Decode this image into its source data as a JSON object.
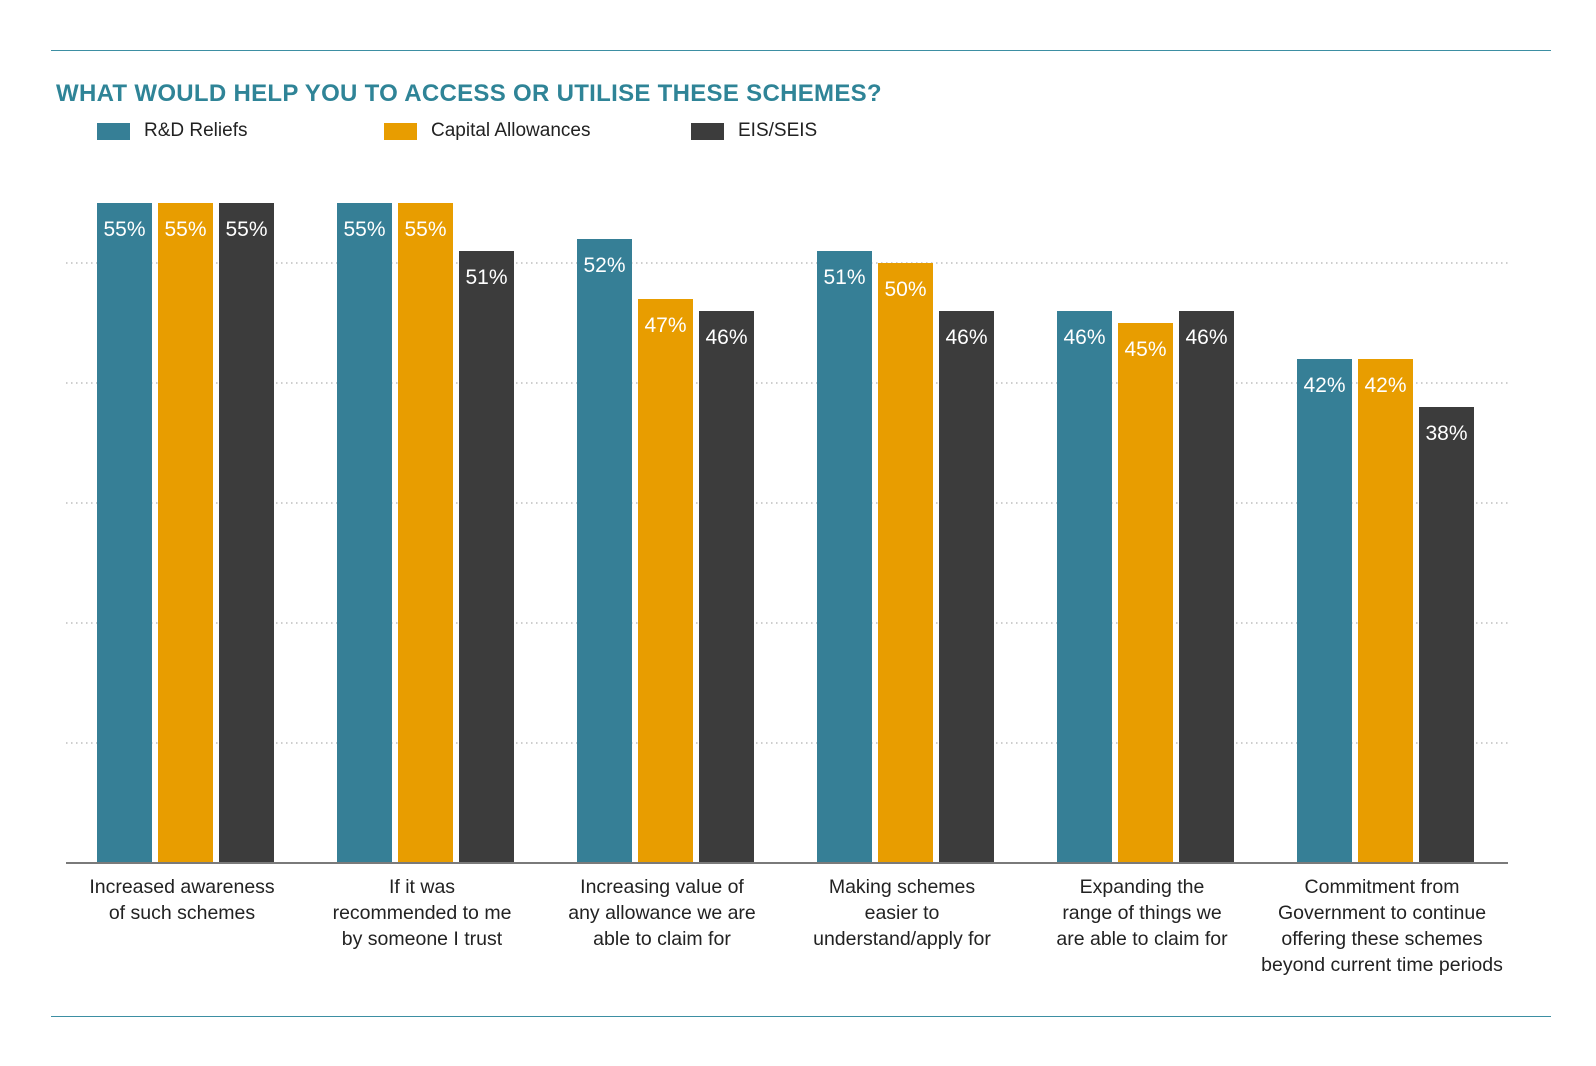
{
  "title": "WHAT WOULD HELP YOU TO ACCESS OR UTILISE THESE SCHEMES?",
  "colors": {
    "rule": "#3d8fa3",
    "title": "#2f8497",
    "grid": "#bdbdbd",
    "value_label": "#ffffff"
  },
  "chart_data": {
    "type": "bar",
    "title": "WHAT WOULD HELP YOU TO ACCESS OR UTILISE THESE SCHEMES?",
    "xlabel": "",
    "ylabel": "",
    "ylim": [
      0,
      55
    ],
    "grid": true,
    "legend_position": "top-left",
    "categories": [
      "Increased awareness\nof such schemes",
      "If it was\nrecommended to me\nby someone I trust",
      "Increasing value of\nany allowance we are\nable to claim for",
      "Making schemes\neasier to\nunderstand/apply for",
      "Expanding the\nrange of things we\nare able to claim for",
      "Commitment from\nGovernment to continue\noffering these schemes\nbeyond current time periods"
    ],
    "series": [
      {
        "name": "R&D Reliefs",
        "color": "#367f96",
        "values": [
          55,
          55,
          52,
          51,
          46,
          42
        ],
        "labels": [
          "55%",
          "55%",
          "52%",
          "51%",
          "46%",
          "42%"
        ]
      },
      {
        "name": "Capital Allowances",
        "color": "#e89d00",
        "values": [
          55,
          55,
          47,
          50,
          45,
          42
        ],
        "labels": [
          "55%",
          "55%",
          "47%",
          "50%",
          "45%",
          "42%"
        ]
      },
      {
        "name": "EIS/SEIS",
        "color": "#3c3c3c",
        "values": [
          55,
          51,
          46,
          46,
          46,
          38
        ],
        "labels": [
          "55%",
          "51%",
          "46%",
          "46%",
          "46%",
          "38%"
        ]
      }
    ]
  }
}
